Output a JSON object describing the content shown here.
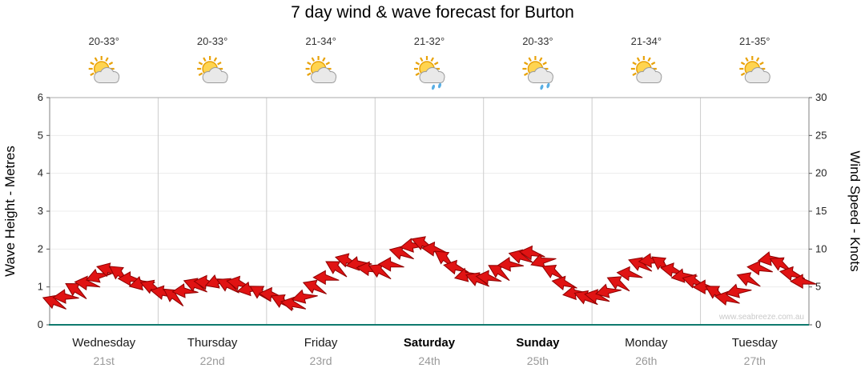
{
  "title": "7 day wind & wave forecast for Burton",
  "watermark": "www.seabreeze.com.au",
  "days": [
    {
      "name": "Wednesday",
      "date": "21st",
      "temp": "20-33°",
      "icon": "sun-cloud",
      "weekend": false
    },
    {
      "name": "Thursday",
      "date": "22nd",
      "temp": "20-33°",
      "icon": "sun-cloud",
      "weekend": false
    },
    {
      "name": "Friday",
      "date": "23rd",
      "temp": "21-34°",
      "icon": "sun-cloud",
      "weekend": false
    },
    {
      "name": "Saturday",
      "date": "24th",
      "temp": "21-32°",
      "icon": "sun-cloud-rain",
      "weekend": true
    },
    {
      "name": "Sunday",
      "date": "25th",
      "temp": "20-33°",
      "icon": "sun-cloud-rain",
      "weekend": true
    },
    {
      "name": "Monday",
      "date": "26th",
      "temp": "21-34°",
      "icon": "sun-cloud",
      "weekend": false
    },
    {
      "name": "Tuesday",
      "date": "27th",
      "temp": "21-35°",
      "icon": "sun-cloud",
      "weekend": false
    }
  ],
  "colors": {
    "arrow": "#e01313",
    "arrow_outline": "#8f0000",
    "baseline": "#0f7a6e",
    "grid": "#cccccc",
    "grid_light": "#ececec",
    "date_text": "#999999",
    "watermark_text": "#c9c9c9"
  },
  "chart_data": {
    "type": "scatter",
    "subtype": "wind-direction-arrows",
    "title": "7 day wind & wave forecast for Burton",
    "ylabel_left": "Wave Height - Metres",
    "ylabel_right": "Wind Speed - Knots",
    "ylim_left": [
      0,
      6
    ],
    "yticks_left": [
      0,
      1,
      2,
      3,
      4,
      5,
      6
    ],
    "ylim_right": [
      0,
      30
    ],
    "yticks_right": [
      0,
      5,
      10,
      15,
      20,
      25,
      30
    ],
    "x_categories": [
      "Wednesday",
      "Thursday",
      "Friday",
      "Saturday",
      "Sunday",
      "Monday",
      "Tuesday"
    ],
    "grid": "day-separators",
    "legend": "none",
    "point_format": "[day_offset_0to7, wave_height_m, arrow_direction_deg]",
    "points": [
      [
        0.05,
        0.6,
        200
      ],
      [
        0.15,
        0.75,
        175
      ],
      [
        0.25,
        0.92,
        210
      ],
      [
        0.35,
        1.1,
        185
      ],
      [
        0.45,
        1.3,
        160
      ],
      [
        0.55,
        1.45,
        195
      ],
      [
        0.65,
        1.35,
        215
      ],
      [
        0.75,
        1.22,
        180
      ],
      [
        0.85,
        1.1,
        165
      ],
      [
        0.95,
        1.0,
        200
      ],
      [
        1.05,
        0.85,
        190
      ],
      [
        1.15,
        0.75,
        215
      ],
      [
        1.25,
        0.9,
        175
      ],
      [
        1.35,
        1.05,
        200
      ],
      [
        1.45,
        1.12,
        185
      ],
      [
        1.55,
        1.15,
        160
      ],
      [
        1.65,
        1.05,
        205
      ],
      [
        1.75,
        1.1,
        190
      ],
      [
        1.85,
        0.95,
        170
      ],
      [
        1.95,
        0.85,
        210
      ],
      [
        2.05,
        0.8,
        185
      ],
      [
        2.15,
        0.62,
        205
      ],
      [
        2.25,
        0.55,
        190
      ],
      [
        2.35,
        0.75,
        165
      ],
      [
        2.45,
        1.0,
        200
      ],
      [
        2.55,
        1.25,
        180
      ],
      [
        2.65,
        1.5,
        210
      ],
      [
        2.75,
        1.7,
        195
      ],
      [
        2.85,
        1.62,
        170
      ],
      [
        2.95,
        1.48,
        185
      ],
      [
        3.05,
        1.42,
        205
      ],
      [
        3.15,
        1.6,
        180
      ],
      [
        3.25,
        1.9,
        195
      ],
      [
        3.35,
        2.1,
        170
      ],
      [
        3.45,
        2.15,
        200
      ],
      [
        3.55,
        2.0,
        185
      ],
      [
        3.65,
        1.75,
        215
      ],
      [
        3.75,
        1.52,
        190
      ],
      [
        3.85,
        1.32,
        165
      ],
      [
        3.95,
        1.2,
        200
      ],
      [
        4.05,
        1.25,
        185
      ],
      [
        4.15,
        1.4,
        210
      ],
      [
        4.25,
        1.6,
        175
      ],
      [
        4.35,
        1.8,
        195
      ],
      [
        4.45,
        1.9,
        185
      ],
      [
        4.55,
        1.7,
        160
      ],
      [
        4.65,
        1.4,
        205
      ],
      [
        4.75,
        1.1,
        190
      ],
      [
        4.85,
        0.85,
        170
      ],
      [
        4.95,
        0.72,
        200
      ],
      [
        5.05,
        0.75,
        190
      ],
      [
        5.15,
        0.9,
        165
      ],
      [
        5.25,
        1.1,
        205
      ],
      [
        5.35,
        1.35,
        185
      ],
      [
        5.45,
        1.6,
        200
      ],
      [
        5.55,
        1.7,
        175
      ],
      [
        5.65,
        1.6,
        215
      ],
      [
        5.75,
        1.45,
        190
      ],
      [
        5.85,
        1.3,
        170
      ],
      [
        5.95,
        1.15,
        195
      ],
      [
        6.05,
        1.0,
        180
      ],
      [
        6.15,
        0.85,
        210
      ],
      [
        6.25,
        0.7,
        190
      ],
      [
        6.35,
        0.9,
        165
      ],
      [
        6.45,
        1.2,
        200
      ],
      [
        6.55,
        1.5,
        185
      ],
      [
        6.65,
        1.75,
        170
      ],
      [
        6.75,
        1.6,
        205
      ],
      [
        6.85,
        1.35,
        190
      ],
      [
        6.95,
        1.15,
        180
      ]
    ]
  }
}
